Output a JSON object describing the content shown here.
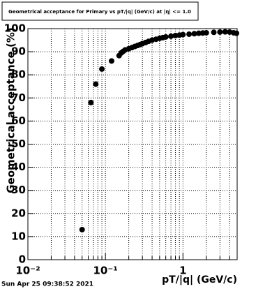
{
  "chart_data": {
    "type": "scatter",
    "title": "Geometrical acceptance for Primary vs pT/|q| (GeV/c) at |η| <= 1.0",
    "x_label": "pT/|q| (GeV/c)",
    "y_label": "Geometrical acceptance (%)",
    "timestamp": "Sun Apr 25 09:38:52 2021",
    "x_log": true,
    "grid": true,
    "color": "#000000",
    "x": [
      0.05,
      0.065,
      0.075,
      0.09,
      0.12,
      0.15,
      0.16,
      0.17,
      0.18,
      0.2,
      0.22,
      0.24,
      0.26,
      0.28,
      0.3,
      0.33,
      0.36,
      0.4,
      0.45,
      0.5,
      0.55,
      0.6,
      0.7,
      0.8,
      0.9,
      1.0,
      1.2,
      1.4,
      1.6,
      1.8,
      2.0,
      2.5,
      3.0,
      3.5,
      4.0,
      4.5,
      4.9
    ],
    "values": [
      13,
      68,
      76,
      82.5,
      86,
      88.3,
      89.5,
      90.2,
      90.8,
      91.3,
      91.8,
      92.3,
      92.7,
      93.1,
      93.5,
      94,
      94.5,
      95,
      95.4,
      95.8,
      96.1,
      96.4,
      96.7,
      97,
      97.2,
      97.4,
      97.6,
      97.8,
      98,
      98.1,
      98.2,
      98.4,
      98.5,
      98.6,
      98.5,
      98.2,
      98
    ],
    "xlim": [
      0.01,
      5
    ],
    "ylim": [
      0,
      100
    ],
    "xticks": [
      {
        "value": 0.01,
        "label": "10⁻²"
      },
      {
        "value": 0.1,
        "label": "10⁻¹"
      },
      1
    ],
    "minor_xticks": [
      0.02,
      0.03,
      0.04,
      0.05,
      0.06,
      0.07,
      0.08,
      0.09,
      0.2,
      0.3,
      0.4,
      0.5,
      0.6,
      0.7,
      0.8,
      0.9,
      2,
      3,
      4
    ],
    "yticks": [
      0,
      10,
      20,
      30,
      40,
      50,
      60,
      70,
      80,
      90,
      100
    ]
  }
}
